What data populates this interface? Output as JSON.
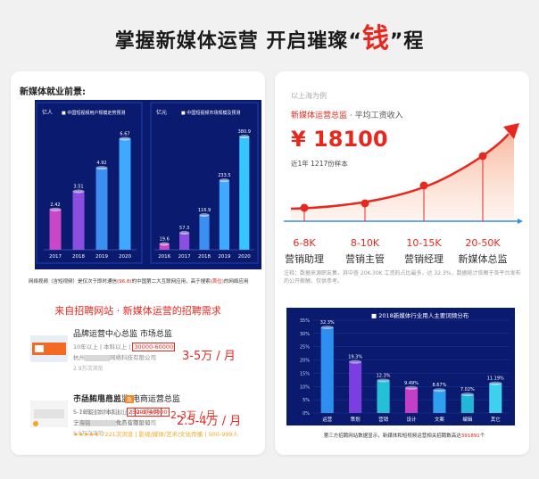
{
  "headline": {
    "part1": "掌握新媒体运营 开启璀璨",
    "quote_open": "“",
    "money": "钱",
    "quote_close": "”",
    "part2": "程"
  },
  "left": {
    "section_title": "新媒体就业前景:",
    "chart_a": {
      "title": "中国短视频用户规模走势预测",
      "unit": "亿人",
      "categories": [
        "2017",
        "2018",
        "2019",
        "2020"
      ],
      "values": [
        2.42,
        3.51,
        4.92,
        6.67
      ]
    },
    "chart_b": {
      "title": "中国短视频市场规模及预测",
      "unit": "亿元",
      "categories": [
        "2016",
        "2017",
        "2018",
        "2019",
        "2020"
      ],
      "values": [
        19.6,
        57.3,
        116.9,
        233.5,
        380.9
      ]
    },
    "note_a": "网络视频（含短视频）是仅次于即时通信",
    "note_red1": "(96.8)",
    "note_b": "的中国第二大互联网应用，高于搜索",
    "note_red2": "(首位)",
    "note_c": "的网络应用",
    "recruit_title": "来自招聘网站 · 新媒体运营的招聘需求",
    "jobs": [
      {
        "title": "品牌运营中心总监 市场总监",
        "meta_pre": "10年以上 | 本科以上 | ",
        "salary_box": "30000-60000",
        "company": "杭州",
        "company_tail": "网络科技有限公司",
        "views": "2.9万次浏览",
        "pay": "3-5万 / 月"
      },
      {
        "title": "子品牌电商总监  电商运营总监",
        "meta_pre": "5-10年 | 本科以上 | ",
        "salary_box": "25000-40000",
        "company": "宁",
        "company_tail": "之协食品有限公司",
        "views": "9.9万次浏览",
        "pay": "2.5-4万 / 月"
      },
      {
        "title": "市场拓展总监",
        "hot": "急",
        "meta_pre": "5-7年经验 | 本科以上 | ",
        "salary_box": "2-3万/月",
        "company": "上海铭",
        "company_tail": "化产业有限公司",
        "views": "★★★★★ 7221次浏览 | 影视/媒体/艺术/文化传播 | 500-999人",
        "pay": "2-3万 / 月"
      }
    ]
  },
  "right": {
    "city": "以上海为例",
    "salary_label_red": "新媒体运营总监",
    "salary_label_rest": " · 平均工资收入",
    "salary_value": "¥ 18100",
    "sample": "近1年 1217份样本",
    "stages": [
      {
        "range": "6-8K",
        "role": "营销助理"
      },
      {
        "range": "8-10K",
        "role": "营销主管"
      },
      {
        "range": "10-15K",
        "role": "营销经理"
      },
      {
        "range": "20-50K",
        "role": "新媒体总监"
      }
    ],
    "note": "注释：数据来源职友集，其中查 20K-30K 工资的占比最多，达 32.3%，数据统计依赖于各平台发布的公开薪酬，仅供参考。",
    "chart_c": {
      "title": "2018新媒体行业用人主要词频分布",
      "categories": [
        "运营",
        "策划",
        "营销",
        "设计",
        "文案",
        "编辑",
        "其它"
      ],
      "values": [
        32.3,
        19.3,
        12.3,
        9.49,
        8.67,
        7.02,
        11.19
      ],
      "labels": [
        "32.3%",
        "19.3%",
        "12.3%",
        "9.49%",
        "8.67%",
        "7.02%",
        "11.19%"
      ],
      "yticks": [
        "35%",
        "30%",
        "25%",
        "20%",
        "15%",
        "10%",
        "5%",
        "0%"
      ]
    },
    "bottom_note_a": "第三方招聘网站数据显示，新媒体和短视频运营相关招聘数高达",
    "bottom_note_red": "391891",
    "bottom_note_b": "个"
  },
  "chart_data": [
    {
      "type": "bar",
      "title": "中国短视频用户规模走势预测",
      "ylabel": "亿人",
      "categories": [
        "2017",
        "2018",
        "2019",
        "2020"
      ],
      "values": [
        2.42,
        3.51,
        4.92,
        6.67
      ]
    },
    {
      "type": "bar",
      "title": "中国短视频市场规模及预测",
      "ylabel": "亿元",
      "categories": [
        "2016",
        "2017",
        "2018",
        "2019",
        "2020"
      ],
      "values": [
        19.6,
        57.3,
        116.9,
        233.5,
        380.9
      ]
    },
    {
      "type": "bar",
      "title": "2018新媒体行业用人主要词频分布",
      "categories": [
        "运营",
        "策划",
        "营销",
        "设计",
        "文案",
        "编辑",
        "其它"
      ],
      "values": [
        32.3,
        19.3,
        12.3,
        9.49,
        8.67,
        7.02,
        11.19
      ],
      "ylim": [
        0,
        35
      ]
    }
  ],
  "colors": {
    "accent": "#e8281f",
    "chart_bg": "#0a1a6e"
  }
}
